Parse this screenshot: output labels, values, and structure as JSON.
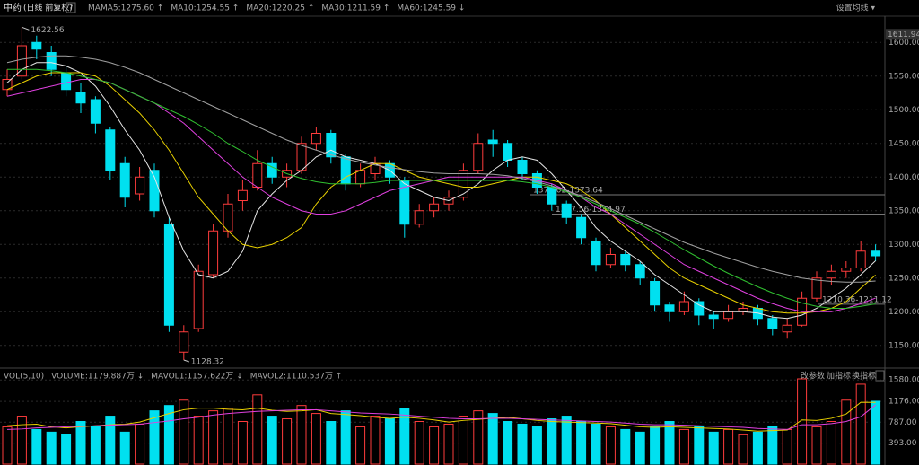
{
  "header": {
    "title": "中药",
    "subtitle": "(日线 前复权)",
    "help": "?",
    "ma_label": "MA",
    "settings": "设置均线 ▾",
    "buttons": [
      "改参数",
      "加指标",
      "换指标"
    ]
  },
  "chart_data": [
    {
      "type": "candlestick",
      "ylim": [
        1123,
        1639
      ],
      "yticks": [
        {
          "value": 1150,
          "label": "1150.00"
        },
        {
          "value": 1200,
          "label": "1200.00"
        },
        {
          "value": 1250,
          "label": "1250.00"
        },
        {
          "value": 1300,
          "label": "1300.00"
        },
        {
          "value": 1350,
          "label": "1350.00"
        },
        {
          "value": 1400,
          "label": "1400.00"
        },
        {
          "value": 1450,
          "label": "1450.00"
        },
        {
          "value": 1500,
          "label": "1500.00"
        },
        {
          "value": 1550,
          "label": "1550.00"
        },
        {
          "value": 1600,
          "label": "1600.00"
        }
      ],
      "grid": true,
      "up_color": "#ff3c3c",
      "down_color": "#00e0f0",
      "marker": 1611.94,
      "ohlc": [
        [
          1530,
          1560,
          1520,
          1545
        ],
        [
          1550,
          1622.56,
          1545,
          1595
        ],
        [
          1600,
          1610,
          1575,
          1590
        ],
        [
          1585,
          1595,
          1550,
          1560
        ],
        [
          1555,
          1565,
          1520,
          1530
        ],
        [
          1525,
          1540,
          1495,
          1510
        ],
        [
          1515,
          1520,
          1465,
          1480
        ],
        [
          1470,
          1475,
          1395,
          1410
        ],
        [
          1420,
          1430,
          1355,
          1370
        ],
        [
          1375,
          1415,
          1365,
          1400
        ],
        [
          1410,
          1420,
          1340,
          1350
        ],
        [
          1330,
          1340,
          1170,
          1180
        ],
        [
          1140,
          1180,
          1128.32,
          1170
        ],
        [
          1175,
          1270,
          1170,
          1260
        ],
        [
          1255,
          1330,
          1250,
          1320
        ],
        [
          1320,
          1375,
          1310,
          1360
        ],
        [
          1365,
          1395,
          1350,
          1380
        ],
        [
          1385,
          1440,
          1380,
          1420
        ],
        [
          1420,
          1430,
          1390,
          1400
        ],
        [
          1400,
          1420,
          1385,
          1410
        ],
        [
          1410,
          1460,
          1405,
          1450
        ],
        [
          1450,
          1475,
          1440,
          1465
        ],
        [
          1465,
          1470,
          1420,
          1430
        ],
        [
          1430,
          1435,
          1380,
          1390
        ],
        [
          1390,
          1420,
          1385,
          1410
        ],
        [
          1405,
          1430,
          1395,
          1420
        ],
        [
          1420,
          1425,
          1390,
          1400
        ],
        [
          1395,
          1400,
          1310,
          1330
        ],
        [
          1330,
          1360,
          1325,
          1350
        ],
        [
          1350,
          1370,
          1340,
          1360
        ],
        [
          1360,
          1380,
          1350,
          1370
        ],
        [
          1370,
          1420,
          1365,
          1410
        ],
        [
          1410,
          1465,
          1405,
          1450
        ],
        [
          1455,
          1470,
          1430,
          1450
        ],
        [
          1450,
          1455,
          1415,
          1425
        ],
        [
          1425,
          1430,
          1395,
          1405
        ],
        [
          1405,
          1410,
          1375,
          1385
        ],
        [
          1385,
          1390,
          1350,
          1360
        ],
        [
          1360,
          1365,
          1330,
          1340
        ],
        [
          1340,
          1345,
          1300,
          1310
        ],
        [
          1305,
          1310,
          1260,
          1270
        ],
        [
          1270,
          1295,
          1265,
          1285
        ],
        [
          1285,
          1290,
          1260,
          1270
        ],
        [
          1270,
          1275,
          1240,
          1250
        ],
        [
          1245,
          1250,
          1200,
          1210
        ],
        [
          1210,
          1215,
          1185,
          1200
        ],
        [
          1200,
          1230,
          1195,
          1215
        ],
        [
          1215,
          1220,
          1180,
          1195
        ],
        [
          1195,
          1200,
          1175,
          1190
        ],
        [
          1190,
          1210,
          1185,
          1200
        ],
        [
          1200,
          1215,
          1195,
          1205
        ],
        [
          1205,
          1210,
          1180,
          1190
        ],
        [
          1190,
          1195,
          1165,
          1175
        ],
        [
          1170,
          1190,
          1160,
          1180
        ],
        [
          1180,
          1230,
          1178,
          1220
        ],
        [
          1220,
          1260,
          1215,
          1250
        ],
        [
          1250,
          1270,
          1240,
          1260
        ],
        [
          1260,
          1275,
          1250,
          1265
        ],
        [
          1265,
          1305,
          1260,
          1290
        ],
        [
          1290,
          1300,
          1275,
          1283
        ]
      ],
      "series": [
        {
          "name": "MA5:1275.60 ↑",
          "color": "#e6e6e6",
          "values": [
            1540,
            1560,
            1570,
            1570,
            1565,
            1555,
            1535,
            1505,
            1470,
            1440,
            1400,
            1340,
            1290,
            1255,
            1250,
            1260,
            1290,
            1350,
            1375,
            1395,
            1410,
            1430,
            1440,
            1430,
            1425,
            1420,
            1410,
            1390,
            1380,
            1370,
            1365,
            1375,
            1390,
            1410,
            1425,
            1430,
            1425,
            1405,
            1380,
            1355,
            1325,
            1305,
            1290,
            1275,
            1255,
            1240,
            1225,
            1210,
            1200,
            1200,
            1200,
            1198,
            1192,
            1190,
            1195,
            1205,
            1220,
            1235,
            1255,
            1275.6
          ]
        },
        {
          "name": "MA10:1254.55 ↑",
          "color": "#e8d000",
          "values": [
            1530,
            1540,
            1550,
            1555,
            1555,
            1555,
            1550,
            1535,
            1515,
            1495,
            1470,
            1440,
            1405,
            1370,
            1345,
            1320,
            1300,
            1295,
            1300,
            1310,
            1325,
            1360,
            1385,
            1400,
            1410,
            1420,
            1420,
            1410,
            1400,
            1395,
            1390,
            1385,
            1385,
            1390,
            1395,
            1400,
            1400,
            1395,
            1390,
            1380,
            1365,
            1345,
            1325,
            1305,
            1285,
            1265,
            1250,
            1240,
            1230,
            1220,
            1210,
            1205,
            1200,
            1198,
            1198,
            1200,
            1205,
            1215,
            1235,
            1254.55
          ]
        },
        {
          "name": "MA20:1220.25 ↑",
          "color": "#e040e0",
          "values": [
            1520,
            1525,
            1530,
            1535,
            1540,
            1545,
            1545,
            1540,
            1530,
            1520,
            1510,
            1495,
            1480,
            1460,
            1440,
            1420,
            1400,
            1385,
            1370,
            1360,
            1350,
            1345,
            1345,
            1350,
            1360,
            1370,
            1380,
            1385,
            1390,
            1395,
            1400,
            1400,
            1400,
            1400,
            1400,
            1400,
            1395,
            1390,
            1380,
            1370,
            1355,
            1345,
            1330,
            1315,
            1300,
            1285,
            1270,
            1260,
            1250,
            1240,
            1230,
            1220,
            1212,
            1205,
            1200,
            1200,
            1200,
            1205,
            1212,
            1220.25
          ]
        },
        {
          "name": "MA30:1211.59 ↑",
          "color": "#30c030",
          "values": [
            1560,
            1560,
            1560,
            1558,
            1555,
            1550,
            1545,
            1540,
            1530,
            1520,
            1510,
            1500,
            1490,
            1478,
            1465,
            1450,
            1438,
            1425,
            1415,
            1405,
            1398,
            1393,
            1390,
            1390,
            1390,
            1392,
            1395,
            1395,
            1395,
            1395,
            1395,
            1395,
            1395,
            1395,
            1395,
            1393,
            1390,
            1385,
            1378,
            1370,
            1360,
            1350,
            1340,
            1330,
            1318,
            1305,
            1292,
            1280,
            1268,
            1257,
            1247,
            1237,
            1228,
            1220,
            1213,
            1208,
            1205,
            1205,
            1208,
            1211.59
          ]
        },
        {
          "name": "MA60:1245.59 ↓",
          "color": "#a0a0a0",
          "values": [
            1570,
            1575,
            1578,
            1580,
            1580,
            1578,
            1575,
            1570,
            1563,
            1555,
            1545,
            1535,
            1525,
            1515,
            1505,
            1495,
            1485,
            1475,
            1465,
            1455,
            1447,
            1440,
            1433,
            1427,
            1422,
            1418,
            1414,
            1411,
            1408,
            1406,
            1405,
            1405,
            1405,
            1404,
            1402,
            1398,
            1393,
            1387,
            1380,
            1372,
            1363,
            1353,
            1343,
            1333,
            1323,
            1313,
            1303,
            1295,
            1287,
            1280,
            1273,
            1266,
            1260,
            1255,
            1250,
            1247,
            1245,
            1244,
            1244,
            1245.59
          ]
        }
      ],
      "levels": [
        {
          "value": 1373.64,
          "label": "1374.02-1373.64"
        },
        {
          "value": 1344.97,
          "label": "1347.56-1344.97"
        },
        {
          "value": 1211.12,
          "label": "1210.36-1211.12"
        }
      ]
    },
    {
      "type": "bar",
      "title": "VOL(5,10)",
      "legend": "VOLUME:1179.887万 ↓",
      "ylim": [
        0,
        1600
      ],
      "yticks": [
        {
          "value": 393,
          "label": "393.00"
        },
        {
          "value": 787,
          "label": "787.00"
        },
        {
          "value": 1176,
          "label": "1176.00"
        },
        {
          "value": 1580,
          "label": "1580.00"
        }
      ],
      "values": [
        700,
        900,
        650,
        600,
        550,
        800,
        700,
        900,
        600,
        750,
        1000,
        1100,
        1200,
        900,
        1000,
        1050,
        800,
        1300,
        900,
        850,
        1100,
        950,
        800,
        1000,
        700,
        900,
        850,
        1050,
        800,
        700,
        750,
        900,
        1000,
        950,
        800,
        750,
        700,
        850,
        900,
        800,
        750,
        700,
        650,
        600,
        700,
        800,
        650,
        700,
        600,
        650,
        550,
        600,
        700,
        650,
        1600,
        700,
        800,
        1200,
        1500,
        1179.887
      ],
      "series": [
        {
          "name": "MAVOL1:1157.622万 ↓",
          "color": "#e8d000",
          "values": [
            720,
            740,
            750,
            700,
            680,
            700,
            720,
            740,
            750,
            790,
            870,
            950,
            1020,
            1050,
            1050,
            1030,
            1020,
            1050,
            1010,
            990,
            1000,
            1020,
            950,
            930,
            910,
            880,
            860,
            880,
            860,
            830,
            790,
            820,
            840,
            860,
            880,
            850,
            820,
            800,
            790,
            780,
            770,
            760,
            730,
            700,
            690,
            700,
            690,
            680,
            670,
            660,
            640,
            620,
            630,
            640,
            830,
            820,
            860,
            940,
            1160,
            1157.622
          ]
        },
        {
          "name": "MAVOL2:1110.537万 ↑",
          "color": "#e040e0",
          "values": [
            650,
            660,
            680,
            690,
            700,
            710,
            720,
            730,
            740,
            750,
            780,
            810,
            850,
            880,
            920,
            950,
            970,
            990,
            1000,
            1010,
            1020,
            1020,
            1000,
            980,
            960,
            950,
            940,
            920,
            900,
            880,
            860,
            850,
            850,
            860,
            860,
            850,
            840,
            830,
            820,
            810,
            800,
            790,
            770,
            750,
            740,
            740,
            730,
            720,
            710,
            700,
            690,
            670,
            660,
            650,
            740,
            740,
            760,
            800,
            890,
            1110.537
          ]
        }
      ]
    }
  ]
}
